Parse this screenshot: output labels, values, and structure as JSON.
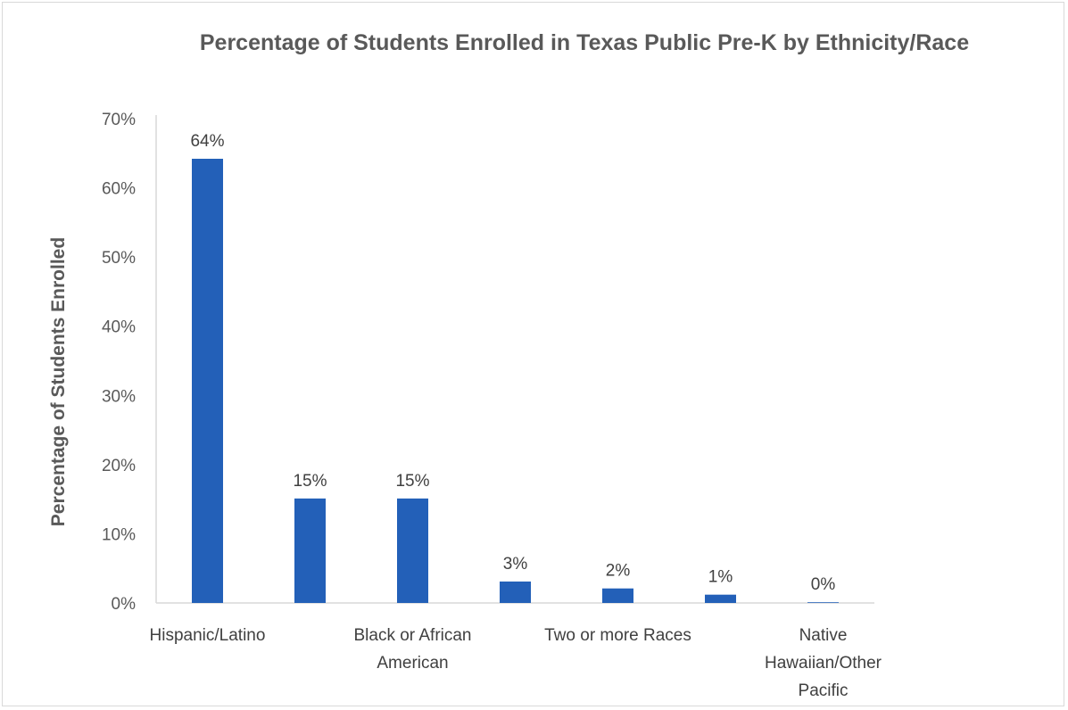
{
  "chart_data": {
    "type": "bar",
    "title": "Percentage of Students Enrolled in Texas Public Pre-K by Ethnicity/Race",
    "ylabel": "Percentage of Students Enrolled",
    "xlabel": "",
    "ylim": [
      0,
      70
    ],
    "yticks": [
      0,
      10,
      20,
      30,
      40,
      50,
      60,
      70
    ],
    "ytick_labels": [
      "0%",
      "10%",
      "20%",
      "30%",
      "40%",
      "50%",
      "60%",
      "70%"
    ],
    "categories": [
      "Hispanic/Latino",
      "",
      "Black or African American",
      "",
      "Two or more Races",
      "",
      "Native Hawaiian/Other Pacific"
    ],
    "category_label_lines": [
      [
        "Hispanic/Latino"
      ],
      [],
      [
        "Black or African",
        "American"
      ],
      [],
      [
        "Two or more Races"
      ],
      [],
      [
        "Native",
        "Hawaiian/Other",
        "Pacific"
      ]
    ],
    "values": [
      64.2,
      15.1,
      15.1,
      3.1,
      2.1,
      1.2,
      0.1
    ],
    "data_labels": [
      "64%",
      "15%",
      "15%",
      "3%",
      "2%",
      "1%",
      "0%"
    ],
    "bar_color": "#2360b8",
    "grid": false,
    "legend": "none"
  }
}
